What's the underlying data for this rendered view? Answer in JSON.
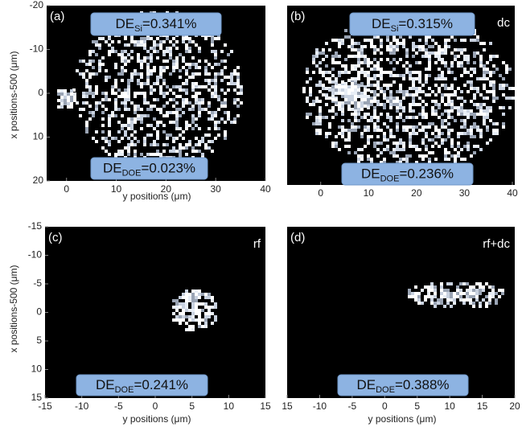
{
  "chart_data": [
    {
      "type": "image",
      "panel_label": "(a)",
      "xlim": [
        -4,
        40
      ],
      "xticks": [
        0,
        10,
        20,
        30,
        40
      ],
      "ylim": [
        -20,
        20
      ],
      "yticks": [
        -20,
        -10,
        0,
        10,
        20
      ],
      "y_inverted": true,
      "xlabel": "y positions (μm)",
      "ylabel": "x positions-500 (μm)",
      "annotations": [
        {
          "main": "DE",
          "sub": "Si",
          "rest": "=0.341%"
        },
        {
          "main": "DE",
          "sub": "DOE",
          "rest": "=0.023%"
        }
      ]
    },
    {
      "type": "image",
      "panel_label": "(b)",
      "mode_label": "dc",
      "xlim": [
        -7,
        40.5
      ],
      "xticks": [
        0,
        10,
        20,
        30,
        40
      ],
      "annotations": [
        {
          "main": "DE",
          "sub": "Si",
          "rest": "=0.315%"
        },
        {
          "main": "DE",
          "sub": "DOE",
          "rest": "=0.236%"
        }
      ]
    },
    {
      "type": "image",
      "panel_label": "(c)",
      "mode_label": "rf",
      "xlim": [
        -15,
        15
      ],
      "xticks": [
        -15,
        -10,
        -5,
        0,
        5,
        10,
        15
      ],
      "ylim": [
        -15,
        15
      ],
      "yticks": [
        -15,
        -10,
        -5,
        0,
        5,
        10,
        15
      ],
      "y_inverted": true,
      "xlabel": "y positions (μm)",
      "ylabel": "x positions-500 (μm)",
      "annotations": [
        {
          "main": "DE",
          "sub": "DOE",
          "rest": "=0.241%"
        }
      ]
    },
    {
      "type": "image",
      "panel_label": "(d)",
      "mode_label": "rf+dc",
      "xlim": [
        -15,
        20
      ],
      "xticks": [
        {
          "value": -15,
          "label": "15"
        },
        -10,
        -5,
        0,
        5,
        10,
        15,
        20
      ],
      "xlabel": "y positions (μm)",
      "annotations": [
        {
          "main": "DE",
          "sub": "DOE",
          "rest": "=0.388%"
        }
      ]
    }
  ]
}
